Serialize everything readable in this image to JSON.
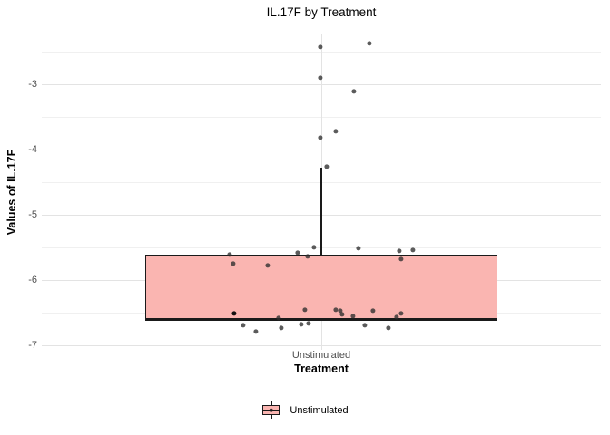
{
  "title": "IL.17F by Treatment",
  "axes": {
    "y_label": "Values of IL.17F",
    "x_label": "Treatment",
    "x_tick_label": "Unstimulated",
    "y_tick_labels": [
      "-3",
      "-4",
      "-5",
      "-6",
      "-7"
    ]
  },
  "legend": {
    "label": "Unstimulated"
  },
  "colors": {
    "box_fill": "#FAB5B1",
    "box_border": "#1A1A1A",
    "median": "#1A1A1A",
    "whisker": "#1A1A1A",
    "point": "rgba(45,45,45,0.78)",
    "point_dark": "rgba(8,8,8,0.95)",
    "grid_major": "#E3E3E3",
    "grid_minor": "#F0F0F0",
    "tick_text": "#4D4D4D"
  },
  "chart_data": {
    "type": "boxplot",
    "title": "IL.17F by Treatment",
    "xlabel": "Treatment",
    "ylabel": "Values of IL.17F",
    "categories": [
      "Unstimulated"
    ],
    "ylim": [
      -7.07,
      -2.24
    ],
    "y_major_ticks": [
      -3,
      -4,
      -5,
      -6,
      -7
    ],
    "y_minor_ticks": [
      -2.5,
      -3.5,
      -4.5,
      -5.5,
      -6.5
    ],
    "grid": true,
    "legend_position": "bottom",
    "series": [
      {
        "name": "Unstimulated",
        "box": {
          "q1": -6.62,
          "median": -6.6,
          "q3": -5.61,
          "whisker_low": -6.62,
          "whisker_high": -4.28
        },
        "points": [
          {
            "v": -2.38,
            "jx": 53
          },
          {
            "v": -2.43,
            "jx": -1
          },
          {
            "v": -2.9,
            "jx": -1
          },
          {
            "v": -3.11,
            "jx": 36
          },
          {
            "v": -3.72,
            "jx": 16
          },
          {
            "v": -3.82,
            "jx": -1
          },
          {
            "v": -4.26,
            "jx": 6
          },
          {
            "v": -5.5,
            "jx": -8
          },
          {
            "v": -5.51,
            "jx": 41
          },
          {
            "v": -5.54,
            "jx": 101
          },
          {
            "v": -5.56,
            "jx": 86
          },
          {
            "v": -5.58,
            "jx": -26
          },
          {
            "v": -5.61,
            "jx": -101
          },
          {
            "v": -5.64,
            "jx": -15
          },
          {
            "v": -5.68,
            "jx": 88
          },
          {
            "v": -5.75,
            "jx": -97
          },
          {
            "v": -5.78,
            "jx": -59
          },
          {
            "v": -6.46,
            "jx": -18
          },
          {
            "v": -6.46,
            "jx": 16
          },
          {
            "v": -6.47,
            "jx": 57
          },
          {
            "v": -6.47,
            "jx": 21
          },
          {
            "v": -6.51,
            "jx": -96,
            "dark": true
          },
          {
            "v": -6.51,
            "jx": 88
          },
          {
            "v": -6.53,
            "jx": 23
          },
          {
            "v": -6.56,
            "jx": 35
          },
          {
            "v": -6.57,
            "jx": 83
          },
          {
            "v": -6.58,
            "jx": -47
          },
          {
            "v": -6.67,
            "jx": -14
          },
          {
            "v": -6.68,
            "jx": -22
          },
          {
            "v": -6.69,
            "jx": -86
          },
          {
            "v": -6.69,
            "jx": 48
          },
          {
            "v": -6.74,
            "jx": 74
          },
          {
            "v": -6.74,
            "jx": -44
          },
          {
            "v": -6.79,
            "jx": -72
          }
        ]
      }
    ]
  }
}
